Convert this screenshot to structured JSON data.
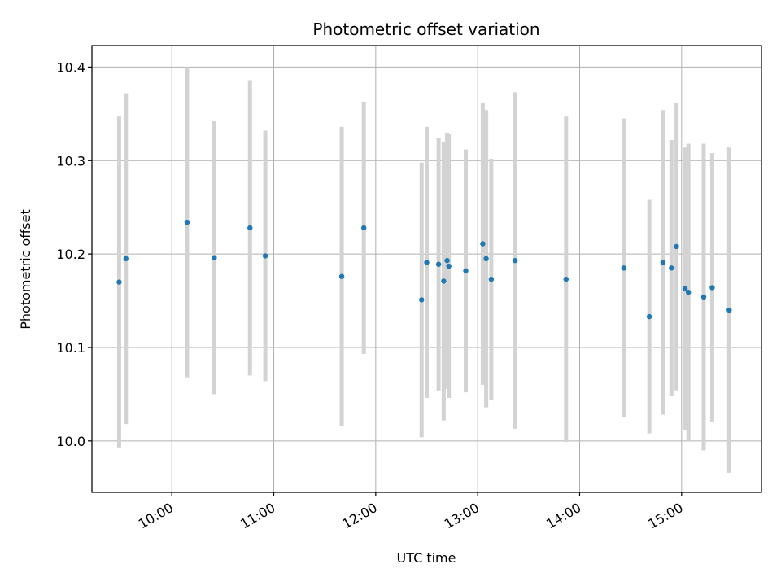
{
  "chart_data": {
    "type": "scatter",
    "title": "Photometric offset variation",
    "xlabel": "UTC time",
    "ylabel": "Photometric offset",
    "x_tick_labels": [
      "10:00",
      "11:00",
      "12:00",
      "13:00",
      "14:00",
      "15:00"
    ],
    "y_tick_labels": [
      "10.0",
      "10.1",
      "10.2",
      "10.3",
      "10.4"
    ],
    "x_range": [
      "09:13",
      "15:47"
    ],
    "ylim": [
      9.945,
      10.423
    ],
    "grid": true,
    "series": [
      {
        "marker_color": "#1f77b4",
        "errorbar_color": "#d3d3d3",
        "points": [
          {
            "time": "09:29",
            "value": 10.17,
            "low": 9.993,
            "high": 10.347
          },
          {
            "time": "09:33",
            "value": 10.195,
            "low": 10.018,
            "high": 10.372
          },
          {
            "time": "10:09",
            "value": 10.234,
            "low": 10.068,
            "high": 10.4
          },
          {
            "time": "10:25",
            "value": 10.196,
            "low": 10.05,
            "high": 10.342
          },
          {
            "time": "10:46",
            "value": 10.228,
            "low": 10.07,
            "high": 10.386
          },
          {
            "time": "10:55",
            "value": 10.198,
            "low": 10.064,
            "high": 10.332
          },
          {
            "time": "11:40",
            "value": 10.176,
            "low": 10.016,
            "high": 10.336
          },
          {
            "time": "11:53",
            "value": 10.228,
            "low": 10.093,
            "high": 10.363
          },
          {
            "time": "12:27",
            "value": 10.151,
            "low": 10.004,
            "high": 10.298
          },
          {
            "time": "12:30",
            "value": 10.191,
            "low": 10.046,
            "high": 10.336
          },
          {
            "time": "12:37",
            "value": 10.189,
            "low": 10.054,
            "high": 10.324
          },
          {
            "time": "12:40",
            "value": 10.171,
            "low": 10.022,
            "high": 10.32
          },
          {
            "time": "12:42",
            "value": 10.193,
            "low": 10.056,
            "high": 10.33
          },
          {
            "time": "12:43",
            "value": 10.187,
            "low": 10.046,
            "high": 10.328
          },
          {
            "time": "12:53",
            "value": 10.182,
            "low": 10.052,
            "high": 10.312
          },
          {
            "time": "13:03",
            "value": 10.211,
            "low": 10.06,
            "high": 10.362
          },
          {
            "time": "13:05",
            "value": 10.195,
            "low": 10.036,
            "high": 10.354
          },
          {
            "time": "13:08",
            "value": 10.173,
            "low": 10.044,
            "high": 10.302
          },
          {
            "time": "13:22",
            "value": 10.193,
            "low": 10.013,
            "high": 10.373
          },
          {
            "time": "13:52",
            "value": 10.173,
            "low": 9.999,
            "high": 10.347
          },
          {
            "time": "14:26",
            "value": 10.185,
            "low": 10.026,
            "high": 10.345
          },
          {
            "time": "14:41",
            "value": 10.133,
            "low": 10.008,
            "high": 10.258
          },
          {
            "time": "14:49",
            "value": 10.191,
            "low": 10.028,
            "high": 10.354
          },
          {
            "time": "14:54",
            "value": 10.185,
            "low": 10.048,
            "high": 10.322
          },
          {
            "time": "14:57",
            "value": 10.208,
            "low": 10.054,
            "high": 10.362
          },
          {
            "time": "15:02",
            "value": 10.163,
            "low": 10.012,
            "high": 10.314
          },
          {
            "time": "15:04",
            "value": 10.159,
            "low": 10.0,
            "high": 10.318
          },
          {
            "time": "15:13",
            "value": 10.154,
            "low": 9.99,
            "high": 10.318
          },
          {
            "time": "15:18",
            "value": 10.164,
            "low": 10.02,
            "high": 10.308
          },
          {
            "time": "15:28",
            "value": 10.14,
            "low": 9.966,
            "high": 10.314
          }
        ]
      }
    ]
  }
}
